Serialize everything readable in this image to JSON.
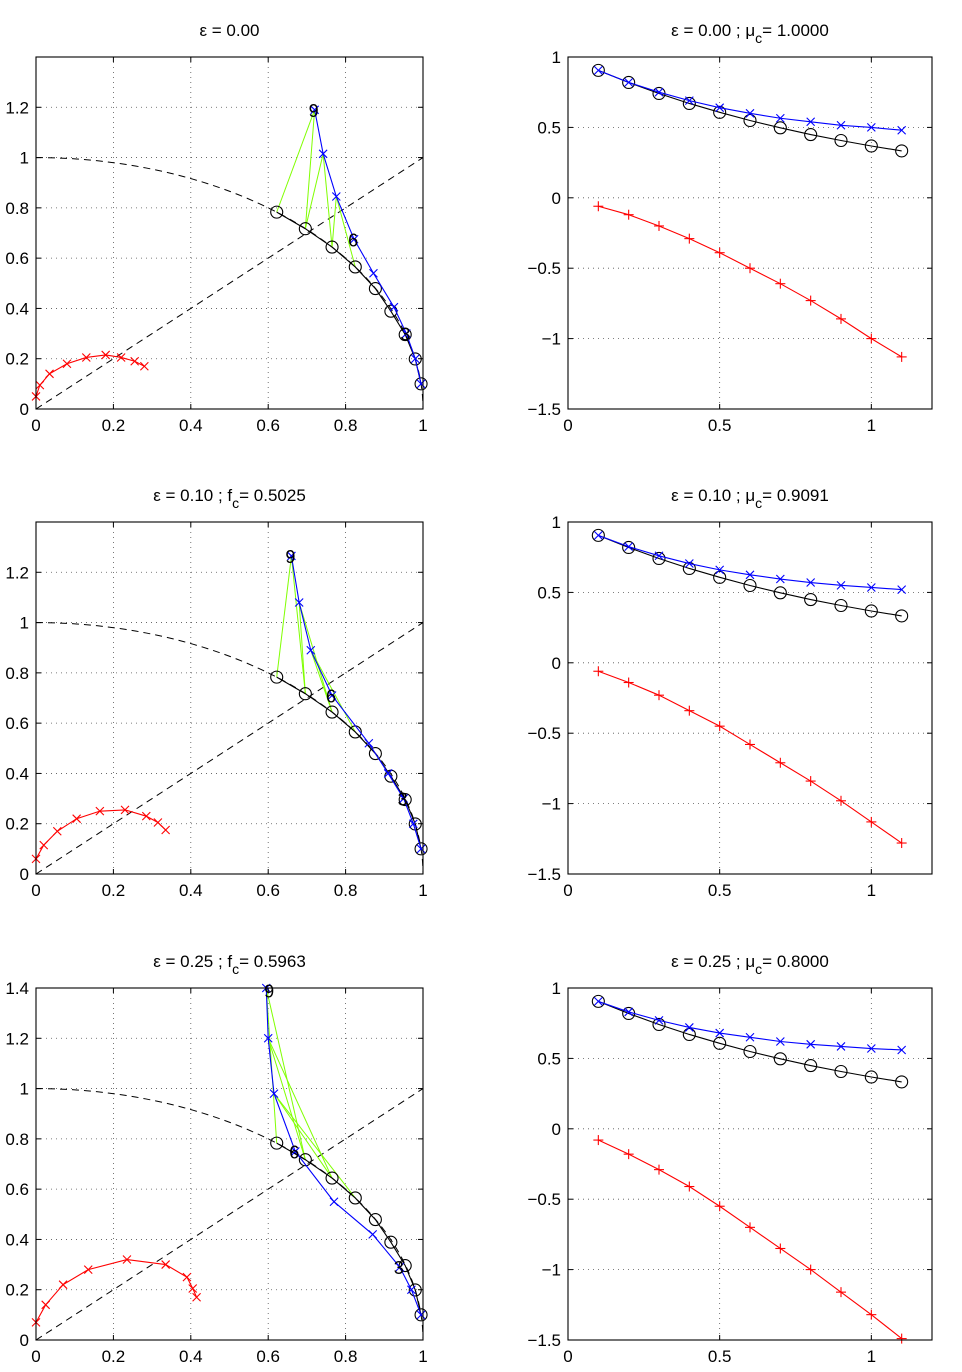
{
  "figure": {
    "background": "#ffffff",
    "colors": {
      "black": "#000000",
      "blue": "#0000ff",
      "red": "#ff0000",
      "green": "#80ff00"
    }
  },
  "chart_data": [
    {
      "type": "line",
      "title": "ε = 0.00",
      "title_main": "ε = 0.00",
      "title_sub": "",
      "title_tail": "",
      "xlim": [
        0,
        1
      ],
      "ylim": [
        0,
        1.4
      ],
      "xticks": [
        0,
        0.2,
        0.4,
        0.6,
        0.8,
        1
      ],
      "xtick_labels": [
        "0",
        "0.2",
        "0.4",
        "0.6",
        "0.8",
        "1"
      ],
      "yticks": [
        0,
        0.2,
        0.4,
        0.6,
        0.8,
        1,
        1.2
      ],
      "ytick_labels": [
        "0",
        "0.2",
        "0.4",
        "0.6",
        "0.8",
        "1",
        "1.2"
      ],
      "grid": true,
      "reference_curves": [
        "unit circle",
        "line y = x"
      ],
      "series": [
        {
          "color": "#000000",
          "marker": "o",
          "x": [
            0.995,
            0.98,
            0.954,
            0.917,
            0.877,
            0.825,
            0.765,
            0.696,
            0.622
          ],
          "y": [
            0.1,
            0.199,
            0.296,
            0.389,
            0.479,
            0.565,
            0.644,
            0.717,
            0.783
          ]
        },
        {
          "color": "#0000ff",
          "marker": "x",
          "x": [
            0.995,
            0.98,
            0.957,
            0.925,
            0.872,
            0.822,
            0.776,
            0.742,
            0.72
          ],
          "y": [
            0.1,
            0.2,
            0.3,
            0.405,
            0.54,
            0.675,
            0.845,
            1.015,
            1.19
          ]
        },
        {
          "color": "#ff0000",
          "marker": "x",
          "x": [
            0.0,
            0.01,
            0.035,
            0.08,
            0.13,
            0.18,
            0.22,
            0.255,
            0.28
          ],
          "y": [
            0.05,
            0.095,
            0.14,
            0.18,
            0.205,
            0.215,
            0.205,
            0.19,
            0.17
          ]
        }
      ],
      "connectors": [
        [
          6,
          6
        ],
        [
          7,
          7
        ],
        [
          8,
          8
        ]
      ],
      "point_labels": [
        {
          "text": "3",
          "x": 0.957,
          "y": 0.3
        },
        {
          "text": "6",
          "x": 0.822,
          "y": 0.675
        },
        {
          "text": "9",
          "x": 0.72,
          "y": 1.19
        }
      ]
    },
    {
      "type": "line",
      "title": "ε = 0.00 ; μc= 1.0000",
      "title_main": "ε = 0.00 ; μ",
      "title_sub": "c",
      "title_tail": "= 1.0000",
      "xlim": [
        0,
        1.2
      ],
      "ylim": [
        -1.5,
        1
      ],
      "xticks": [
        0,
        0.5,
        1
      ],
      "xtick_labels": [
        "0",
        "0.5",
        "1"
      ],
      "yticks": [
        -1.5,
        -1,
        -0.5,
        0,
        0.5,
        1
      ],
      "ytick_labels": [
        "−1.5",
        "−1",
        "−0.5",
        "0",
        "0.5",
        "1"
      ],
      "grid": true,
      "series": [
        {
          "color": "#000000",
          "marker": "o",
          "x": [
            0.1,
            0.2,
            0.3,
            0.4,
            0.5,
            0.6,
            0.7,
            0.8,
            0.9,
            1.0,
            1.1
          ],
          "y": [
            0.905,
            0.819,
            0.741,
            0.67,
            0.607,
            0.549,
            0.497,
            0.449,
            0.407,
            0.368,
            0.333
          ]
        },
        {
          "color": "#0000ff",
          "marker": "x",
          "x": [
            0.1,
            0.2,
            0.3,
            0.4,
            0.5,
            0.6,
            0.7,
            0.8,
            0.9,
            1.0,
            1.1
          ],
          "y": [
            0.905,
            0.82,
            0.75,
            0.69,
            0.64,
            0.6,
            0.565,
            0.54,
            0.515,
            0.5,
            0.48
          ]
        },
        {
          "color": "#ff0000",
          "marker": "+",
          "x": [
            0.1,
            0.2,
            0.3,
            0.4,
            0.5,
            0.6,
            0.7,
            0.8,
            0.9,
            1.0,
            1.1
          ],
          "y": [
            -0.06,
            -0.12,
            -0.2,
            -0.29,
            -0.39,
            -0.5,
            -0.61,
            -0.73,
            -0.86,
            -1.0,
            -1.13
          ]
        }
      ]
    },
    {
      "type": "line",
      "title": "ε = 0.10 ; fc= 0.5025",
      "title_main": "ε = 0.10 ; f",
      "title_sub": "c",
      "title_tail": "= 0.5025",
      "xlim": [
        0,
        1
      ],
      "ylim": [
        0,
        1.4
      ],
      "xticks": [
        0,
        0.2,
        0.4,
        0.6,
        0.8,
        1
      ],
      "xtick_labels": [
        "0",
        "0.2",
        "0.4",
        "0.6",
        "0.8",
        "1"
      ],
      "yticks": [
        0,
        0.2,
        0.4,
        0.6,
        0.8,
        1,
        1.2
      ],
      "ytick_labels": [
        "0",
        "0.2",
        "0.4",
        "0.6",
        "0.8",
        "1",
        "1.2"
      ],
      "grid": true,
      "reference_curves": [
        "unit circle",
        "line y = x"
      ],
      "series": [
        {
          "color": "#000000",
          "marker": "o",
          "x": [
            0.995,
            0.98,
            0.954,
            0.917,
            0.877,
            0.825,
            0.765,
            0.696,
            0.622
          ],
          "y": [
            0.1,
            0.199,
            0.296,
            0.389,
            0.479,
            0.565,
            0.644,
            0.717,
            0.783
          ]
        },
        {
          "color": "#0000ff",
          "marker": "x",
          "x": [
            0.995,
            0.975,
            0.95,
            0.91,
            0.86,
            0.765,
            0.71,
            0.68,
            0.66
          ],
          "y": [
            0.1,
            0.2,
            0.3,
            0.4,
            0.52,
            0.71,
            0.89,
            1.08,
            1.265
          ]
        },
        {
          "color": "#ff0000",
          "marker": "x",
          "x": [
            0.0,
            0.02,
            0.055,
            0.105,
            0.165,
            0.23,
            0.285,
            0.315,
            0.335
          ],
          "y": [
            0.06,
            0.115,
            0.17,
            0.22,
            0.25,
            0.255,
            0.23,
            0.205,
            0.175
          ]
        }
      ],
      "connectors": [
        [
          6,
          6
        ],
        [
          7,
          7
        ],
        [
          8,
          8
        ]
      ],
      "point_labels": [
        {
          "text": "3",
          "x": 0.95,
          "y": 0.3
        },
        {
          "text": "6",
          "x": 0.765,
          "y": 0.71
        },
        {
          "text": "9",
          "x": 0.66,
          "y": 1.265
        }
      ]
    },
    {
      "type": "line",
      "title": "ε = 0.10 ; μc= 0.9091",
      "title_main": "ε = 0.10 ; μ",
      "title_sub": "c",
      "title_tail": "= 0.9091",
      "xlim": [
        0,
        1.2
      ],
      "ylim": [
        -1.5,
        1
      ],
      "xticks": [
        0,
        0.5,
        1
      ],
      "xtick_labels": [
        "0",
        "0.5",
        "1"
      ],
      "yticks": [
        -1.5,
        -1,
        -0.5,
        0,
        0.5,
        1
      ],
      "ytick_labels": [
        "−1.5",
        "−1",
        "−0.5",
        "0",
        "0.5",
        "1"
      ],
      "grid": true,
      "series": [
        {
          "color": "#000000",
          "marker": "o",
          "x": [
            0.1,
            0.2,
            0.3,
            0.4,
            0.5,
            0.6,
            0.7,
            0.8,
            0.9,
            1.0,
            1.1
          ],
          "y": [
            0.905,
            0.819,
            0.741,
            0.67,
            0.607,
            0.549,
            0.497,
            0.449,
            0.407,
            0.368,
            0.333
          ]
        },
        {
          "color": "#0000ff",
          "marker": "x",
          "x": [
            0.1,
            0.2,
            0.3,
            0.4,
            0.5,
            0.6,
            0.7,
            0.8,
            0.9,
            1.0,
            1.1
          ],
          "y": [
            0.905,
            0.825,
            0.76,
            0.705,
            0.66,
            0.625,
            0.595,
            0.57,
            0.55,
            0.535,
            0.52
          ]
        },
        {
          "color": "#ff0000",
          "marker": "+",
          "x": [
            0.1,
            0.2,
            0.3,
            0.4,
            0.5,
            0.6,
            0.7,
            0.8,
            0.9,
            1.0,
            1.1
          ],
          "y": [
            -0.06,
            -0.14,
            -0.23,
            -0.34,
            -0.45,
            -0.58,
            -0.71,
            -0.84,
            -0.98,
            -1.13,
            -1.28
          ]
        }
      ]
    },
    {
      "type": "line",
      "title": "ε = 0.25 ; fc= 0.5963",
      "title_main": "ε = 0.25 ; f",
      "title_sub": "c",
      "title_tail": "= 0.5963",
      "xlim": [
        0,
        1
      ],
      "ylim": [
        0,
        1.4
      ],
      "xticks": [
        0,
        0.2,
        0.4,
        0.6,
        0.8,
        1
      ],
      "xtick_labels": [
        "0",
        "0.2",
        "0.4",
        "0.6",
        "0.8",
        "1"
      ],
      "yticks": [
        0,
        0.2,
        0.4,
        0.6,
        0.8,
        1,
        1.2,
        1.4
      ],
      "ytick_labels": [
        "0",
        "0.2",
        "0.4",
        "0.6",
        "0.8",
        "1",
        "1.2",
        "1.4"
      ],
      "grid": true,
      "reference_curves": [
        "unit circle",
        "line y = x"
      ],
      "series": [
        {
          "color": "#000000",
          "marker": "o",
          "x": [
            0.995,
            0.98,
            0.954,
            0.917,
            0.877,
            0.825,
            0.765,
            0.696,
            0.622
          ],
          "y": [
            0.1,
            0.199,
            0.296,
            0.389,
            0.479,
            0.565,
            0.644,
            0.717,
            0.783
          ]
        },
        {
          "color": "#0000ff",
          "marker": "x",
          "x": [
            0.995,
            0.97,
            0.94,
            0.87,
            0.77,
            0.67,
            0.615,
            0.6,
            0.595
          ],
          "y": [
            0.1,
            0.2,
            0.29,
            0.42,
            0.55,
            0.75,
            0.98,
            1.2,
            1.4
          ]
        },
        {
          "color": "#ff0000",
          "marker": "x",
          "x": [
            0.0,
            0.025,
            0.07,
            0.135,
            0.235,
            0.335,
            0.39,
            0.405,
            0.415
          ],
          "y": [
            0.07,
            0.14,
            0.22,
            0.28,
            0.32,
            0.3,
            0.25,
            0.205,
            0.17
          ]
        }
      ],
      "connectors": [
        [
          6,
          6
        ],
        [
          7,
          7
        ],
        [
          8,
          8
        ]
      ],
      "point_labels": [
        {
          "text": "3",
          "x": 0.94,
          "y": 0.29
        },
        {
          "text": "6",
          "x": 0.67,
          "y": 0.75
        },
        {
          "text": "9",
          "x": 0.605,
          "y": 1.39
        }
      ]
    },
    {
      "type": "line",
      "title": "ε = 0.25 ; μc= 0.8000",
      "title_main": "ε = 0.25 ; μ",
      "title_sub": "c",
      "title_tail": "= 0.8000",
      "xlim": [
        0,
        1.2
      ],
      "ylim": [
        -1.5,
        1
      ],
      "xticks": [
        0,
        0.5,
        1
      ],
      "xtick_labels": [
        "0",
        "0.5",
        "1"
      ],
      "yticks": [
        -1.5,
        -1,
        -0.5,
        0,
        0.5,
        1
      ],
      "ytick_labels": [
        "−1.5",
        "−1",
        "−0.5",
        "0",
        "0.5",
        "1"
      ],
      "grid": true,
      "series": [
        {
          "color": "#000000",
          "marker": "o",
          "x": [
            0.1,
            0.2,
            0.3,
            0.4,
            0.5,
            0.6,
            0.7,
            0.8,
            0.9,
            1.0,
            1.1
          ],
          "y": [
            0.905,
            0.819,
            0.741,
            0.67,
            0.607,
            0.549,
            0.497,
            0.449,
            0.407,
            0.368,
            0.333
          ]
        },
        {
          "color": "#0000ff",
          "marker": "x",
          "x": [
            0.1,
            0.2,
            0.3,
            0.4,
            0.5,
            0.6,
            0.7,
            0.8,
            0.9,
            1.0,
            1.1
          ],
          "y": [
            0.905,
            0.83,
            0.77,
            0.72,
            0.68,
            0.65,
            0.62,
            0.6,
            0.585,
            0.57,
            0.56
          ]
        },
        {
          "color": "#ff0000",
          "marker": "+",
          "x": [
            0.1,
            0.2,
            0.3,
            0.4,
            0.5,
            0.6,
            0.7,
            0.8,
            0.9,
            1.0,
            1.1
          ],
          "y": [
            -0.08,
            -0.18,
            -0.29,
            -0.41,
            -0.55,
            -0.7,
            -0.85,
            -1.0,
            -1.16,
            -1.32,
            -1.49
          ]
        }
      ]
    }
  ]
}
